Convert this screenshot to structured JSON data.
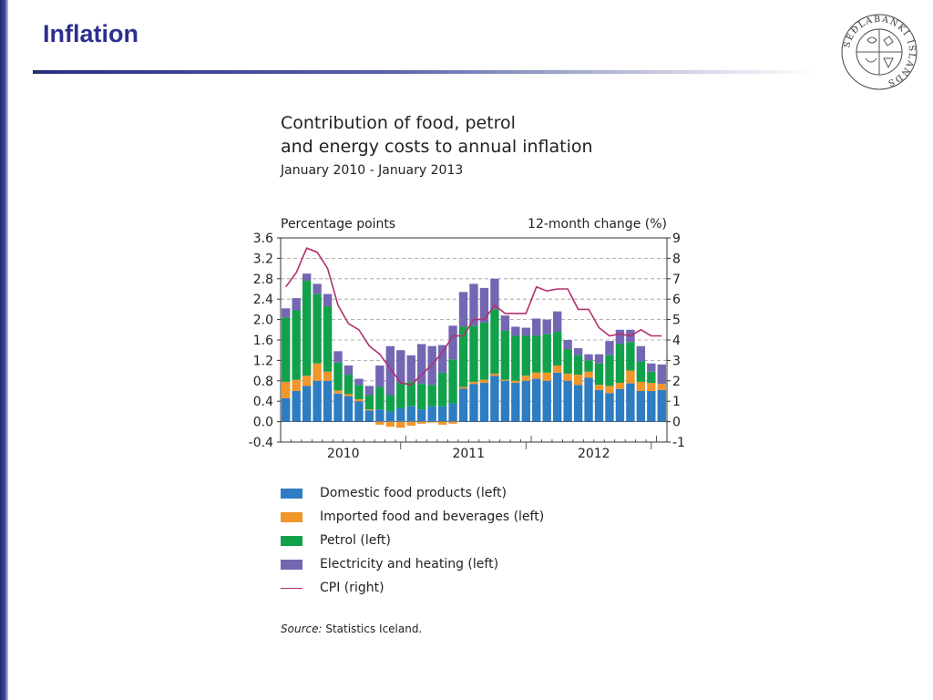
{
  "slide": {
    "title": "Inflation",
    "source_label": "Source:",
    "source_text": "Statistics Iceland."
  },
  "logo": {
    "text": "SEÐLABANKI ÍSLANDS"
  },
  "colors": {
    "title": "#2e2f8f",
    "domestic": "#2e7cc1",
    "imported": "#f0962b",
    "petrol": "#12a14b",
    "electricity": "#7367b3",
    "cpi": "#b03070"
  },
  "chart_data": {
    "type": "bar",
    "stacked": true,
    "title_line1": "Contribution of food, petrol",
    "title_line2": "and energy costs to annual inflation",
    "subtitle": "January 2010 - January 2013",
    "ylabel_left": "Percentage points",
    "ylabel_right": "12-month change (%)",
    "ylim_left": [
      -0.4,
      3.6
    ],
    "ylim_right": [
      -1,
      9
    ],
    "yticks_left": [
      "3.6",
      "3.2",
      "2.8",
      "2.4",
      "2.0",
      "1.6",
      "1.2",
      "0.8",
      "0.4",
      "0.0",
      "-0.4"
    ],
    "yticks_right": [
      "9",
      "8",
      "7",
      "6",
      "5",
      "4",
      "3",
      "2",
      "1",
      "0",
      "-1"
    ],
    "year_labels": [
      "2010",
      "2011",
      "2012"
    ],
    "grid": "dashed horizontal",
    "series": [
      {
        "name": "Domestic food products (left)",
        "color": "#2e7cc1",
        "values": [
          0.46,
          0.6,
          0.7,
          0.8,
          0.8,
          0.55,
          0.5,
          0.4,
          0.22,
          0.24,
          0.2,
          0.26,
          0.3,
          0.24,
          0.3,
          0.3,
          0.36,
          0.65,
          0.74,
          0.76,
          0.9,
          0.8,
          0.76,
          0.8,
          0.84,
          0.8,
          0.96,
          0.8,
          0.72,
          0.86,
          0.62,
          0.56,
          0.64,
          0.75,
          0.6,
          0.6,
          0.62
        ]
      },
      {
        "name": "Imported food and beverages (left)",
        "color": "#f0962b",
        "values": [
          0.32,
          0.22,
          0.2,
          0.34,
          0.18,
          0.06,
          0.04,
          0.04,
          0.02,
          -0.06,
          -0.1,
          -0.12,
          -0.08,
          -0.04,
          -0.02,
          -0.06,
          -0.04,
          0.03,
          0.04,
          0.06,
          0.04,
          0.02,
          0.04,
          0.1,
          0.12,
          0.16,
          0.14,
          0.14,
          0.2,
          0.12,
          0.1,
          0.14,
          0.12,
          0.25,
          0.18,
          0.16,
          0.12
        ]
      },
      {
        "name": "Petrol (left)",
        "color": "#12a14b",
        "values": [
          1.26,
          1.36,
          1.86,
          1.36,
          1.28,
          0.55,
          0.38,
          0.28,
          0.28,
          0.44,
          0.32,
          0.5,
          0.48,
          0.5,
          0.42,
          0.66,
          0.86,
          1.18,
          1.1,
          1.12,
          1.26,
          0.96,
          0.88,
          0.78,
          0.72,
          0.76,
          0.66,
          0.48,
          0.38,
          0.22,
          0.42,
          0.6,
          0.76,
          0.56,
          0.4,
          0.22,
          0.0
        ]
      },
      {
        "name": "Electricity and heating (left)",
        "color": "#7367b3",
        "values": [
          0.18,
          0.24,
          0.14,
          0.2,
          0.24,
          0.22,
          0.18,
          0.12,
          0.18,
          0.42,
          0.96,
          0.64,
          0.52,
          0.78,
          0.76,
          0.54,
          0.66,
          0.68,
          0.82,
          0.68,
          0.6,
          0.3,
          0.18,
          0.16,
          0.34,
          0.28,
          0.4,
          0.18,
          0.14,
          0.12,
          0.18,
          0.28,
          0.28,
          0.24,
          0.3,
          0.16,
          0.38
        ]
      }
    ],
    "line_series": {
      "name": "CPI (right)",
      "axis": "right",
      "color": "#b03070",
      "values": [
        6.6,
        7.3,
        8.5,
        8.3,
        7.5,
        5.7,
        4.8,
        4.5,
        3.7,
        3.3,
        2.6,
        1.9,
        1.8,
        2.3,
        2.8,
        3.4,
        4.2,
        4.2,
        5.0,
        5.0,
        5.7,
        5.3,
        5.3,
        5.3,
        6.6,
        6.4,
        6.5,
        6.5,
        5.5,
        5.5,
        4.6,
        4.2,
        4.3,
        4.2,
        4.5,
        4.2,
        4.2
      ]
    }
  }
}
